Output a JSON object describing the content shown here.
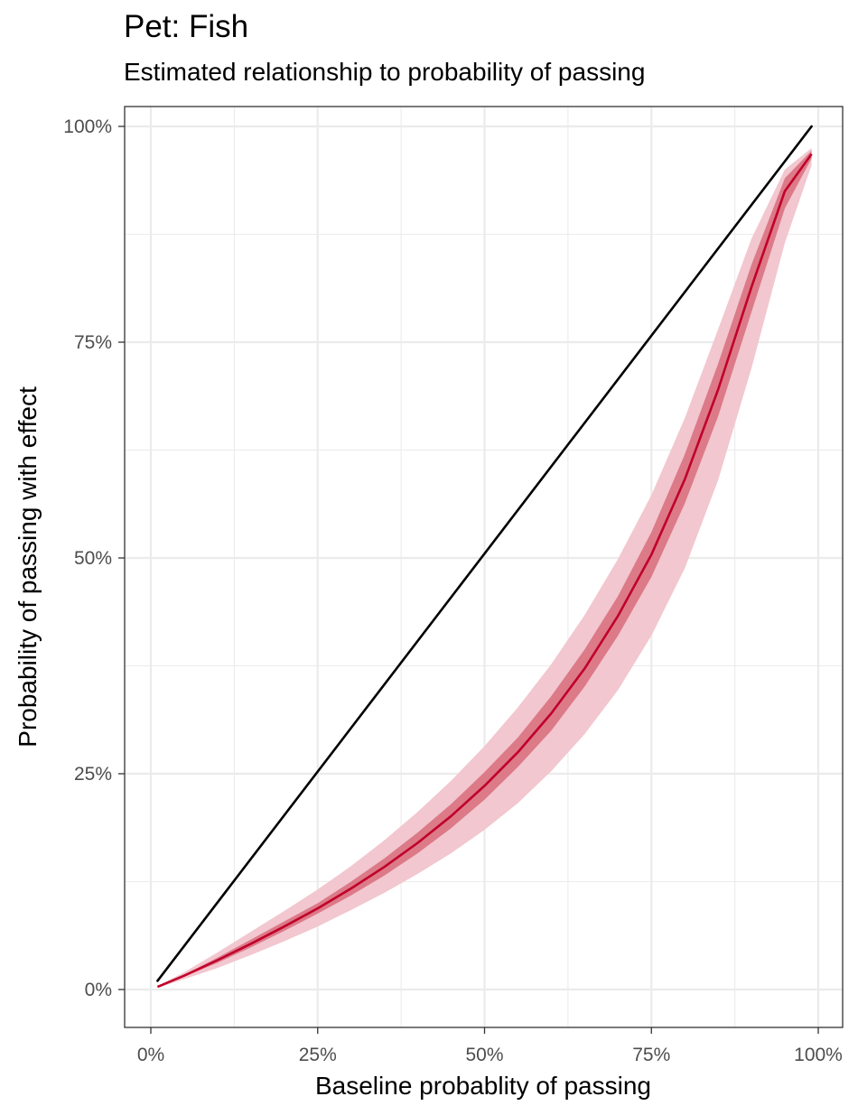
{
  "chart_data": {
    "type": "line",
    "title": "Pet: Fish",
    "subtitle": "Estimated relationship to probability of passing",
    "xlabel": "Baseline probablity of passing",
    "ylabel": "Probability of passing with effect",
    "xlim": [
      0,
      1
    ],
    "ylim": [
      0,
      1
    ],
    "x_ticks": [
      0,
      0.25,
      0.5,
      0.75,
      1
    ],
    "x_tick_labels": [
      "0%",
      "25%",
      "50%",
      "75%",
      "100%"
    ],
    "y_ticks": [
      0,
      0.25,
      0.5,
      0.75,
      1
    ],
    "y_tick_labels": [
      "0%",
      "25%",
      "50%",
      "75%",
      "100%"
    ],
    "grid": true,
    "legend": "none",
    "colors": {
      "effect_line": "#c0002a",
      "inner_band": "#dc7a88",
      "outer_band": "#f2c7cf",
      "reference_line": "#000000",
      "grid": "#ebebeb",
      "panel_border": "#333333"
    },
    "series": [
      {
        "type": "line",
        "x": [
          0.01,
          0.99
        ],
        "y": [
          0.01,
          1.0
        ]
      },
      {
        "type": "line",
        "x": [
          0.01,
          0.05,
          0.1,
          0.15,
          0.2,
          0.25,
          0.3,
          0.35,
          0.4,
          0.45,
          0.5,
          0.55,
          0.6,
          0.65,
          0.7,
          0.75,
          0.8,
          0.85,
          0.9,
          0.95,
          0.99
        ],
        "y": [
          0.003,
          0.016,
          0.034,
          0.053,
          0.073,
          0.094,
          0.117,
          0.142,
          0.17,
          0.201,
          0.236,
          0.275,
          0.32,
          0.372,
          0.433,
          0.504,
          0.591,
          0.695,
          0.814,
          0.925,
          0.968
        ]
      },
      {
        "type": "area",
        "x": [
          0.01,
          0.05,
          0.1,
          0.15,
          0.2,
          0.25,
          0.3,
          0.35,
          0.4,
          0.45,
          0.5,
          0.55,
          0.6,
          0.65,
          0.7,
          0.75,
          0.8,
          0.85,
          0.9,
          0.95,
          0.99
        ],
        "lower": [
          0.003,
          0.015,
          0.031,
          0.049,
          0.068,
          0.088,
          0.109,
          0.132,
          0.158,
          0.187,
          0.22,
          0.258,
          0.3,
          0.351,
          0.41,
          0.478,
          0.563,
          0.664,
          0.785,
          0.905,
          0.963
        ],
        "upper": [
          0.003,
          0.017,
          0.037,
          0.058,
          0.079,
          0.1,
          0.125,
          0.152,
          0.182,
          0.215,
          0.252,
          0.292,
          0.34,
          0.394,
          0.456,
          0.53,
          0.62,
          0.725,
          0.84,
          0.94,
          0.972
        ]
      },
      {
        "type": "area",
        "x": [
          0.01,
          0.05,
          0.1,
          0.15,
          0.2,
          0.25,
          0.3,
          0.35,
          0.4,
          0.45,
          0.5,
          0.55,
          0.6,
          0.65,
          0.7,
          0.75,
          0.8,
          0.85,
          0.9,
          0.95,
          0.99
        ],
        "lower": [
          0.002,
          0.012,
          0.025,
          0.04,
          0.056,
          0.073,
          0.092,
          0.112,
          0.134,
          0.158,
          0.185,
          0.216,
          0.253,
          0.296,
          0.347,
          0.41,
          0.488,
          0.59,
          0.72,
          0.865,
          0.955
        ],
        "upper": [
          0.004,
          0.02,
          0.043,
          0.067,
          0.091,
          0.116,
          0.143,
          0.173,
          0.206,
          0.242,
          0.282,
          0.327,
          0.377,
          0.434,
          0.499,
          0.573,
          0.662,
          0.765,
          0.87,
          0.95,
          0.975
        ]
      }
    ]
  }
}
